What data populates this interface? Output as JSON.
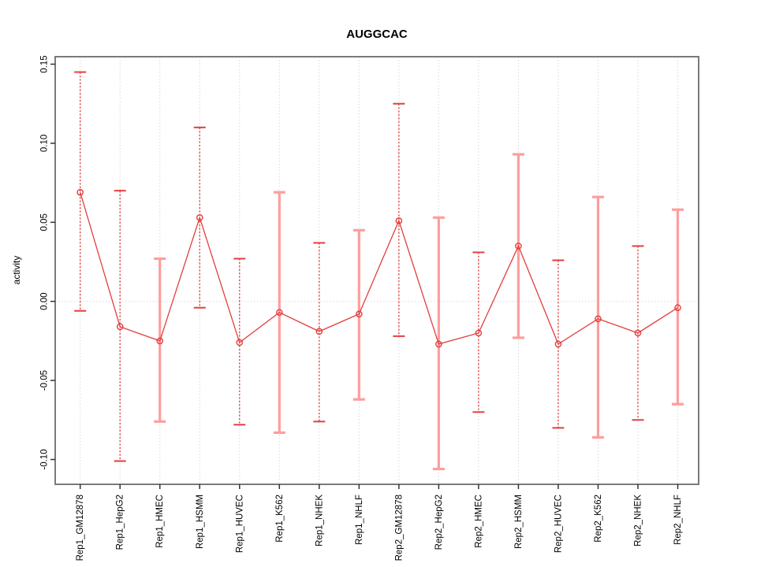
{
  "chart_data": {
    "type": "line",
    "subtype": "points-with-error-bars",
    "title": "AUGGCAC",
    "xlabel": "",
    "ylabel": "activity",
    "categories": [
      "Rep1_GM12878",
      "Rep1_HepG2",
      "Rep1_HMEC",
      "Rep1_HSMM",
      "Rep1_HUVEC",
      "Rep1_K562",
      "Rep1_NHEK",
      "Rep1_NHLF",
      "Rep2_GM12878",
      "Rep2_HepG2",
      "Rep2_HMEC",
      "Rep2_HSMM",
      "Rep2_HUVEC",
      "Rep2_K562",
      "Rep2_NHEK",
      "Rep2_NHLF"
    ],
    "series": [
      {
        "name": "activity",
        "values": [
          0.069,
          -0.016,
          -0.025,
          0.053,
          -0.026,
          -0.007,
          -0.019,
          -0.008,
          0.051,
          -0.027,
          -0.02,
          0.035,
          -0.027,
          -0.011,
          -0.02,
          -0.004
        ]
      }
    ],
    "error_high": [
      0.145,
      0.07,
      0.027,
      0.11,
      0.027,
      0.069,
      0.037,
      0.045,
      0.125,
      0.053,
      0.031,
      0.093,
      0.026,
      0.066,
      0.035,
      0.058
    ],
    "error_low": [
      -0.006,
      -0.101,
      -0.076,
      -0.004,
      -0.078,
      -0.083,
      -0.076,
      -0.062,
      -0.022,
      -0.106,
      -0.07,
      -0.023,
      -0.08,
      -0.086,
      -0.075,
      -0.065
    ],
    "thick_pink_bars": [
      3,
      6,
      8,
      10,
      12,
      14,
      16
    ],
    "yticks": [
      0.15,
      0.1,
      0.05,
      0.0,
      -0.05,
      -0.1
    ],
    "ylim": [
      -0.116,
      0.155
    ],
    "grid": "vertical dotted gridline per category; horizontal dotted line at zero only",
    "legend_position": "none",
    "marker": "open-circle",
    "colors": {
      "line": "#e23e3e",
      "thick_band": "#ff9d9d",
      "grid": "#d9d9d9",
      "box": "#7a7a7a",
      "tick": "#333333",
      "text": "#000000"
    }
  }
}
